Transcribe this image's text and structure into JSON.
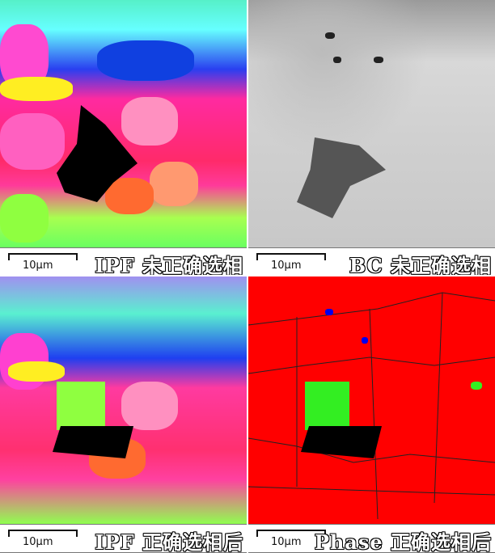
{
  "panels": [
    {
      "title": "IPF 未正确选相",
      "scale": "10μm",
      "map_type": "ipf-before"
    },
    {
      "title": "BC 未正确选相",
      "scale": "10μm",
      "map_type": "band-contrast"
    },
    {
      "title": "IPF 正确选相后",
      "scale": "10μm",
      "map_type": "ipf-after"
    },
    {
      "title": "Phase 正确选相后",
      "scale": "10μm",
      "map_type": "phase-map"
    }
  ],
  "colors": {
    "phase_main": "#ff0000",
    "phase_second": "#33ee22",
    "phase_third": "#0000ee",
    "unindexed": "#000000"
  }
}
